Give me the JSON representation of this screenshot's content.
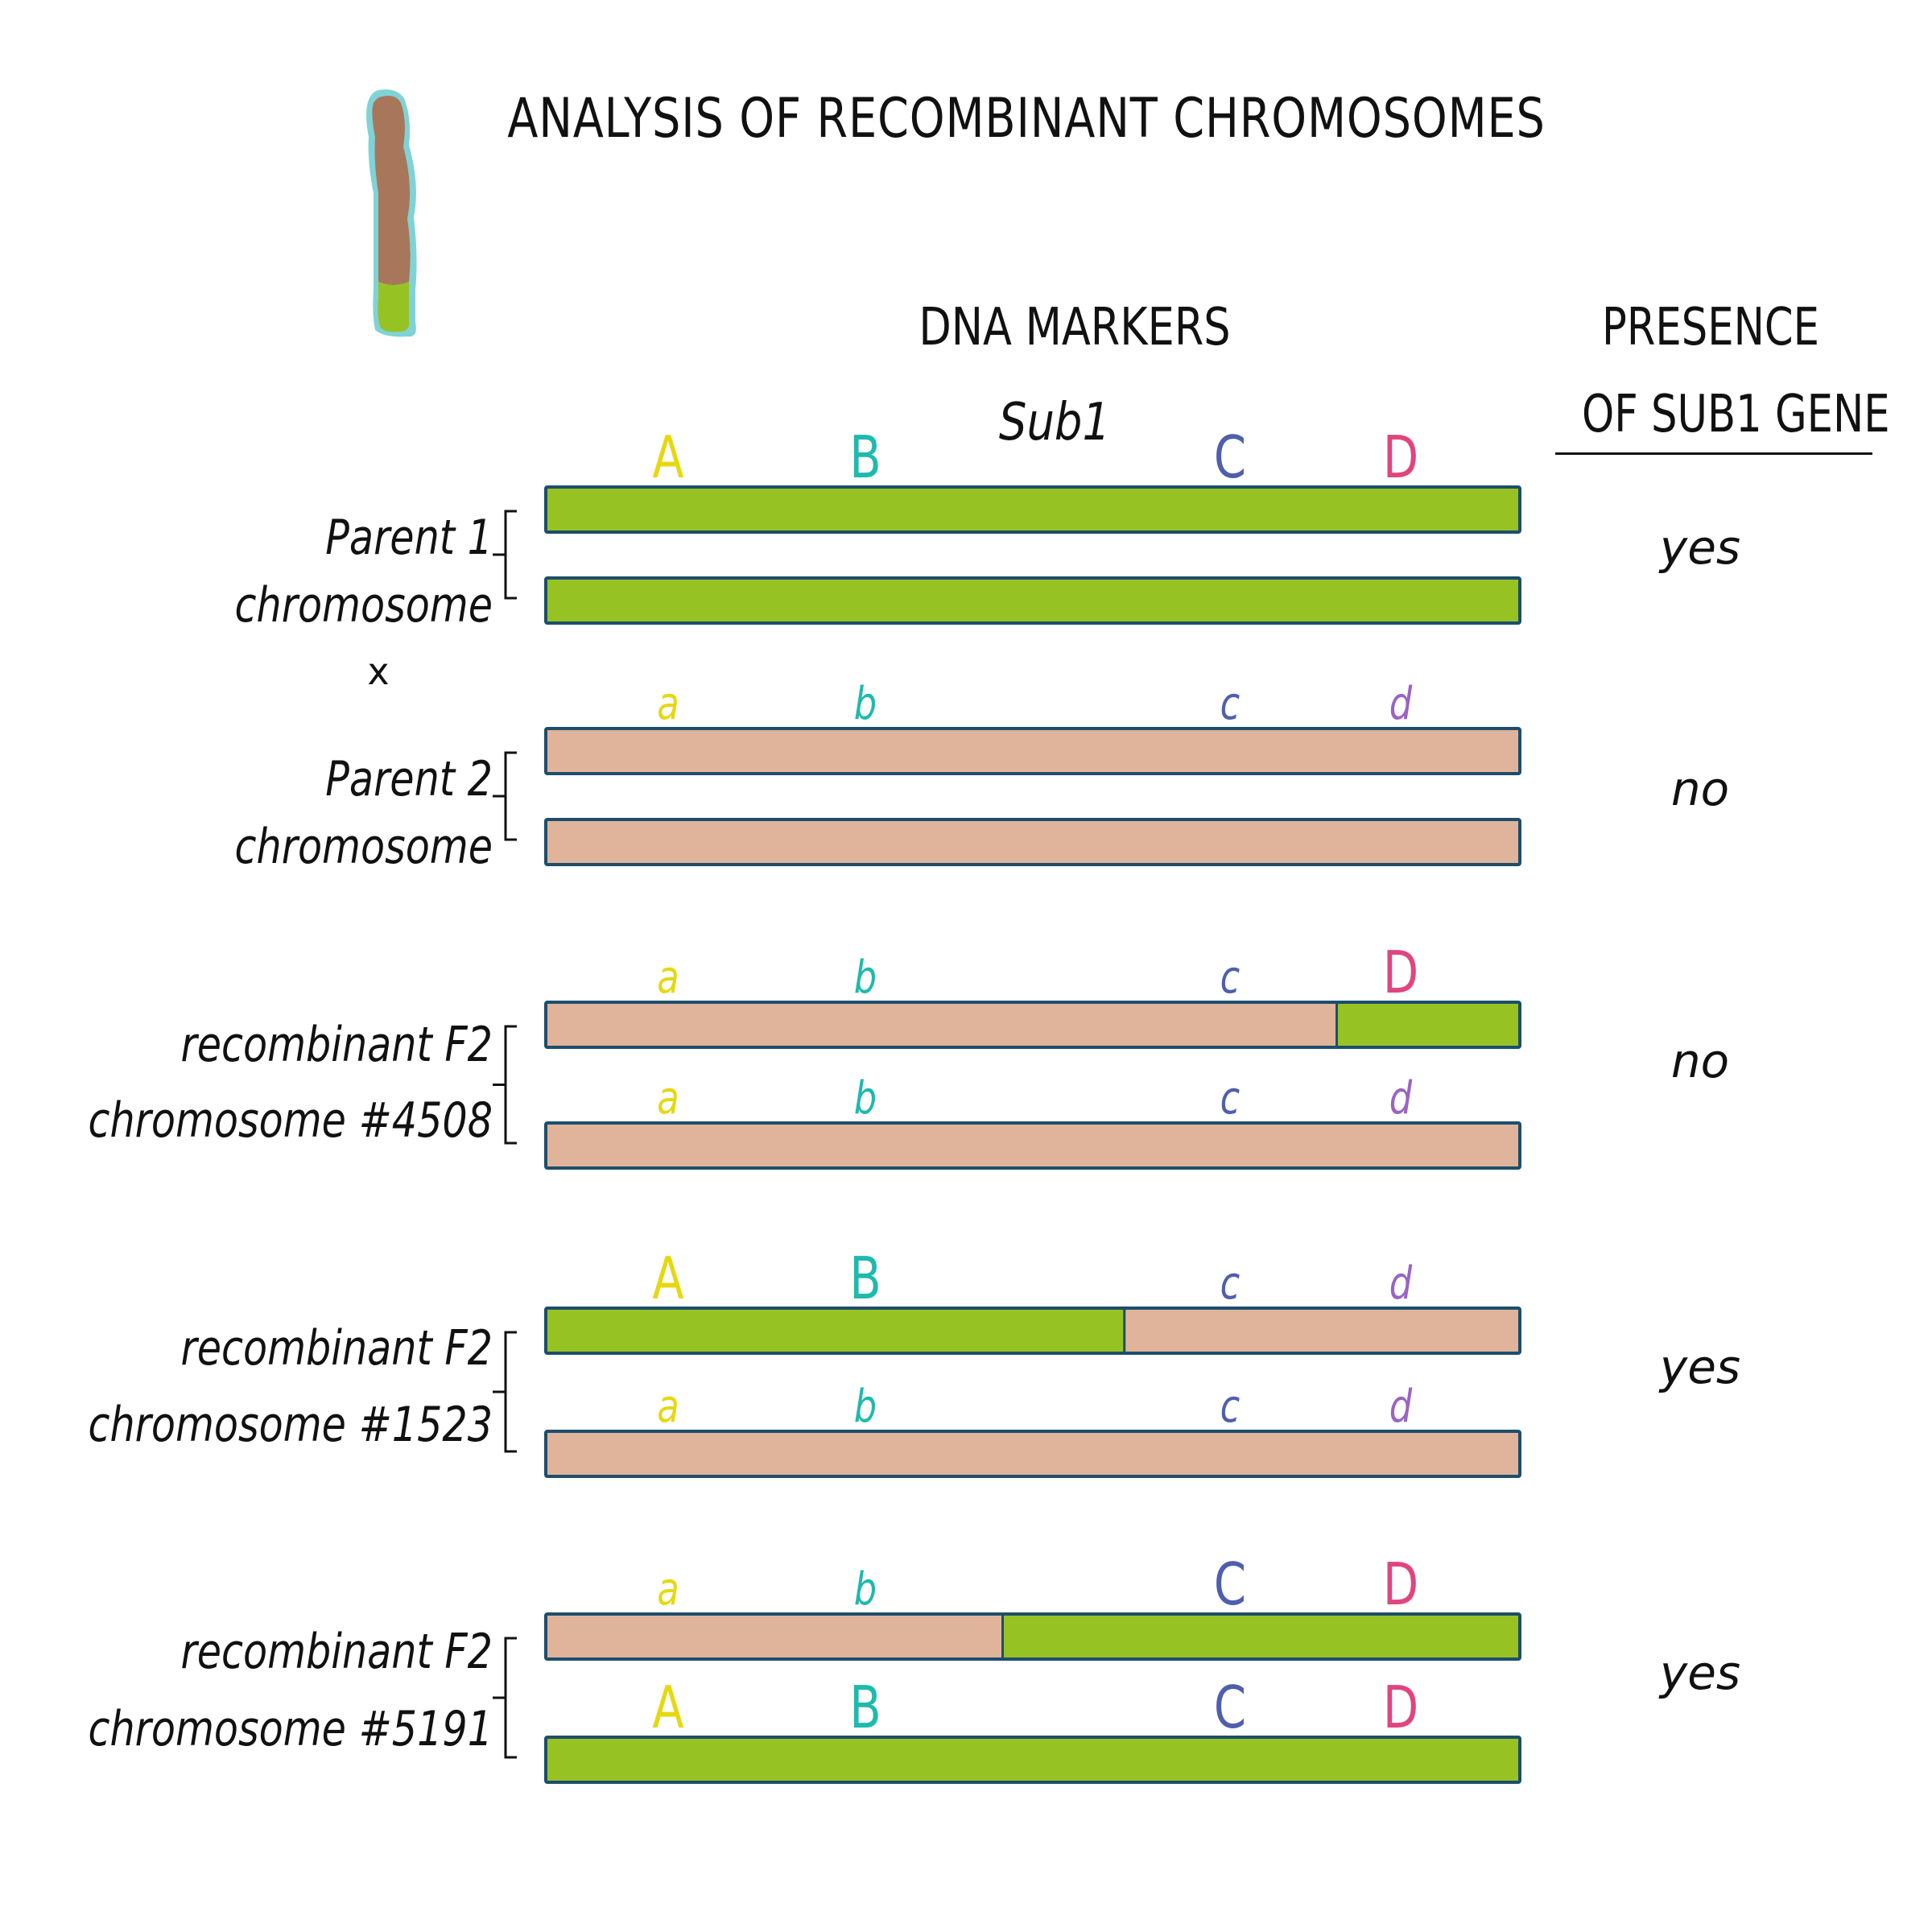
{
  "title": "ANALYSIS OF RECOMBINANT CHROMOSOMES",
  "headers": {
    "markers": "DNA MARKERS",
    "sub1": "Sub1",
    "presence_line1": "PRESENCE",
    "presence_line2": "OF SUB1 GENE"
  },
  "colors": {
    "green": "#97c224",
    "tan": "#e0b49b",
    "outline": "#1d4e6b",
    "marker_A": "#e6d80f",
    "marker_B": "#1fb9ae",
    "marker_C": "#4f5fae",
    "marker_D": "#e0457f",
    "marker_d": "#9a63c4",
    "chrom_brown": "#a8765a",
    "chrom_halo": "#7fd3d6"
  },
  "groups": [
    {
      "label_lines": [
        "Parent  1",
        "chromosome"
      ],
      "extra": "x",
      "presence": "yes",
      "chromosomes": [
        {
          "markers": [
            "A",
            "B",
            "C",
            "D"
          ],
          "segments": [
            {
              "color": "green",
              "span": 1.0
            }
          ]
        },
        {
          "markers": [],
          "segments": [
            {
              "color": "green",
              "span": 1.0
            }
          ]
        }
      ]
    },
    {
      "label_lines": [
        "Parent  2",
        "chromosome"
      ],
      "presence": "no",
      "chromosomes": [
        {
          "markers": [
            "a",
            "b",
            "c",
            "d"
          ],
          "segments": [
            {
              "color": "tan",
              "span": 1.0
            }
          ]
        },
        {
          "markers": [],
          "segments": [
            {
              "color": "tan",
              "span": 1.0
            }
          ]
        }
      ]
    },
    {
      "label_lines": [
        "recombinant F2",
        "chromosome #4508"
      ],
      "presence": "no",
      "chromosomes": [
        {
          "markers": [
            "a",
            "b",
            "c",
            "D"
          ],
          "segments": [
            {
              "color": "tan",
              "span": 0.812
            },
            {
              "color": "green",
              "span": 0.188
            }
          ]
        },
        {
          "markers": [
            "a",
            "b",
            "c",
            "d"
          ],
          "segments": [
            {
              "color": "tan",
              "span": 1.0
            }
          ]
        }
      ]
    },
    {
      "label_lines": [
        "recombinant F2",
        "chromosome #1523"
      ],
      "presence": "yes",
      "chromosomes": [
        {
          "markers": [
            "A",
            "B",
            "c",
            "d"
          ],
          "segments": [
            {
              "color": "green",
              "span": 0.594
            },
            {
              "color": "tan",
              "span": 0.406
            }
          ]
        },
        {
          "markers": [
            "a",
            "b",
            "c",
            "d"
          ],
          "segments": [
            {
              "color": "tan",
              "span": 1.0
            }
          ]
        }
      ]
    },
    {
      "label_lines": [
        "recombinant F2",
        "chromosome #5191"
      ],
      "presence": "yes",
      "chromosomes": [
        {
          "markers": [
            "a",
            "b",
            "C",
            "D"
          ],
          "segments": [
            {
              "color": "tan",
              "span": 0.469
            },
            {
              "color": "green",
              "span": 0.531
            }
          ]
        },
        {
          "markers": [
            "A",
            "B",
            "C",
            "D"
          ],
          "segments": [
            {
              "color": "green",
              "span": 1.0
            }
          ]
        }
      ]
    }
  ]
}
